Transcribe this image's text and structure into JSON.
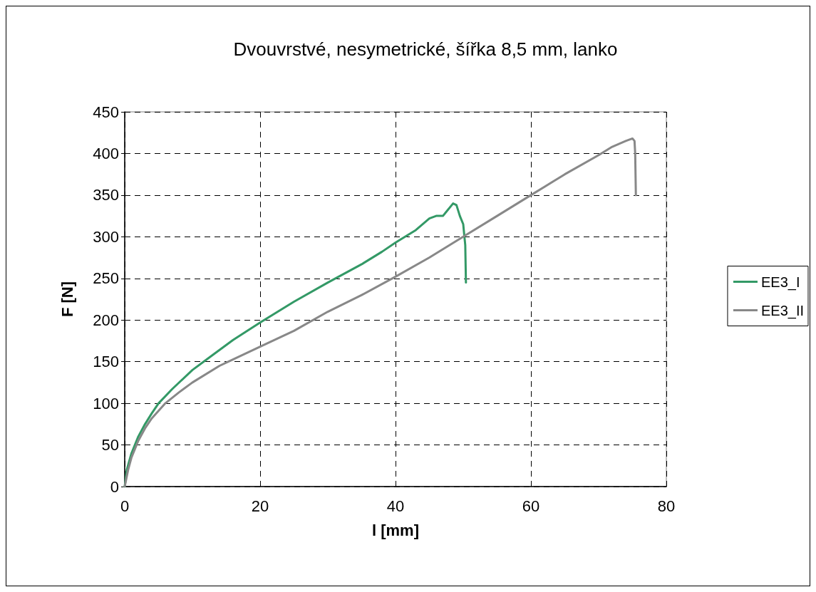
{
  "chart_data": {
    "type": "line",
    "title": "Dvouvrstvé, nesymetrické, šířka 8,5 mm, lanko",
    "xlabel": "l [mm]",
    "ylabel": "F [N]",
    "xlim": [
      0,
      80
    ],
    "xticks": [
      0,
      20,
      40,
      60,
      80
    ],
    "ylim": [
      0,
      450
    ],
    "yticks": [
      0,
      50,
      100,
      150,
      200,
      250,
      300,
      350,
      400,
      450
    ],
    "grid": true,
    "legend": "right",
    "marker": "none",
    "line_style": "solid",
    "series": [
      {
        "name": "EE3_I",
        "color": "#339966",
        "x": [
          0,
          0.3,
          1,
          2,
          3,
          4,
          5,
          7,
          10,
          13,
          16,
          20,
          25,
          30,
          35,
          38,
          40,
          43,
          45,
          46,
          47,
          47.5,
          48.5,
          49,
          49.5,
          50,
          50.2,
          50.3,
          50.4
        ],
        "values": [
          0,
          20,
          40,
          60,
          75,
          88,
          100,
          117,
          140,
          158,
          176,
          197,
          222,
          245,
          267,
          282,
          293,
          308,
          322,
          325,
          325,
          330,
          340,
          338,
          325,
          315,
          298,
          290,
          245
        ]
      },
      {
        "name": "EE3_II",
        "color": "#888888",
        "x": [
          0,
          0.5,
          1,
          2,
          3,
          4,
          6,
          8,
          10,
          14,
          20,
          25,
          30,
          35,
          40,
          45,
          50,
          55,
          60,
          65,
          70,
          72,
          74,
          75,
          75.3,
          75.4,
          75.5
        ],
        "values": [
          0,
          20,
          35,
          55,
          70,
          82,
          100,
          113,
          125,
          145,
          168,
          187,
          210,
          230,
          252,
          275,
          300,
          325,
          350,
          375,
          398,
          408,
          415,
          418,
          415,
          400,
          350
        ]
      }
    ]
  }
}
